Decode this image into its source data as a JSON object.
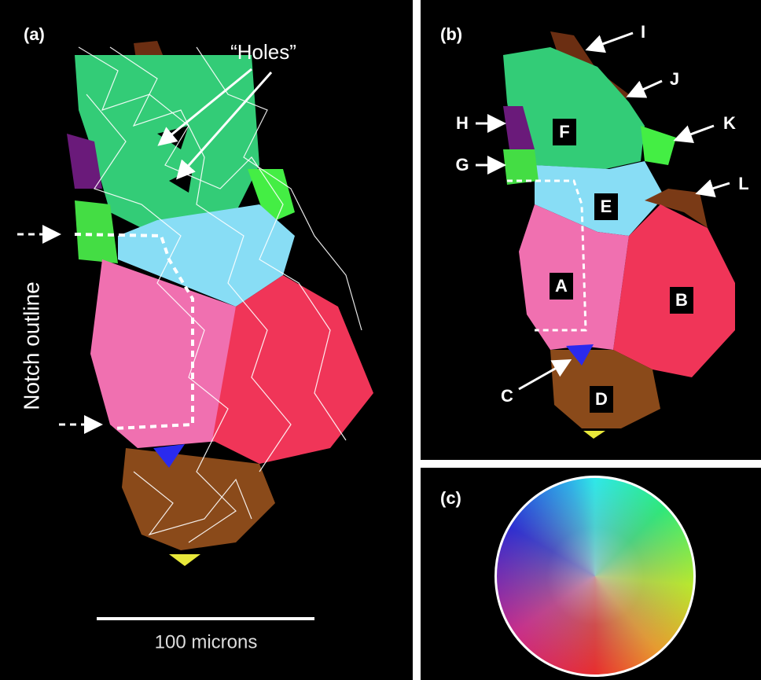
{
  "panel_a": {
    "label": "(a)",
    "holes_label": "“Holes”",
    "notch_label": "Notch outline",
    "scale_label": "100 microns"
  },
  "panel_b": {
    "label": "(b)",
    "grains": [
      "A",
      "B",
      "C",
      "D",
      "E",
      "F",
      "G",
      "H",
      "I",
      "J",
      "K",
      "L"
    ]
  },
  "panel_c": {
    "label": "(c)"
  }
}
